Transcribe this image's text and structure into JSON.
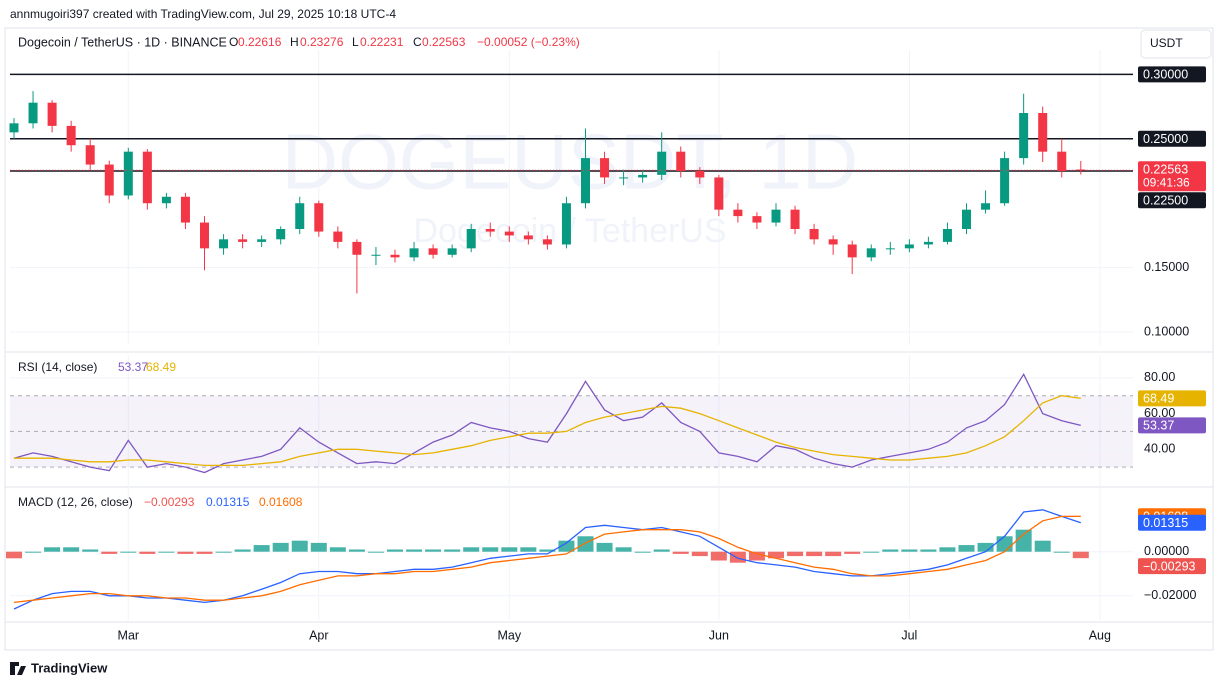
{
  "header": {
    "credit": "annmugoiri397 created with TradingView.com, Jul 29, 2025 10:18 UTC-4",
    "currency": "USDT",
    "brand": "TradingView"
  },
  "chart_data": [
    {
      "type": "candlestick",
      "title": "Dogecoin / TetherUS · 1D · BINANCE",
      "watermark": "DOGEUSDT, 1D",
      "watermark_subtitle": "Dogecoin / TetherUS",
      "open_label": "O",
      "high_label": "H",
      "low_label": "L",
      "close_label": "C",
      "change": "−0.00052 (−0.23%)",
      "countdown": "09:41:36",
      "up_color": "#089981",
      "down_color": "#f23645",
      "grid": true,
      "categories": [
        null,
        null,
        null,
        null,
        null,
        null,
        "Mar",
        null,
        null,
        null,
        null,
        null,
        null,
        null,
        null,
        null,
        "Apr",
        null,
        null,
        null,
        null,
        null,
        null,
        null,
        null,
        null,
        "May",
        null,
        null,
        null,
        null,
        null,
        null,
        null,
        null,
        null,
        null,
        "Jun",
        null,
        null,
        null,
        null,
        null,
        null,
        null,
        null,
        null,
        "Jul",
        null,
        null,
        null,
        null,
        null,
        null,
        null,
        null,
        null,
        "Aug"
      ],
      "open": [
        0.255,
        0.262,
        0.278,
        0.26,
        0.245,
        0.23,
        0.206,
        0.24,
        0.2,
        0.205,
        0.185,
        0.165,
        0.172,
        0.17,
        0.172,
        0.18,
        0.2,
        0.178,
        0.17,
        0.16,
        0.16,
        0.158,
        0.165,
        0.16,
        0.165,
        0.18,
        0.178,
        0.175,
        0.172,
        0.168,
        0.2,
        0.235,
        0.22,
        0.22,
        0.222,
        0.24,
        0.225,
        0.22,
        0.195,
        0.19,
        0.185,
        0.195,
        0.18,
        0.172,
        0.168,
        0.158,
        0.165,
        0.165,
        0.168,
        0.17,
        0.18,
        0.195,
        0.2,
        0.235,
        0.27,
        0.24,
        0.22616,
        null
      ],
      "high": [
        0.266,
        0.287,
        0.28,
        0.264,
        0.25,
        0.233,
        0.243,
        0.242,
        0.208,
        0.208,
        0.19,
        0.176,
        0.176,
        0.175,
        0.182,
        0.205,
        0.202,
        0.182,
        0.172,
        0.166,
        0.164,
        0.17,
        0.168,
        0.168,
        0.184,
        0.185,
        0.182,
        0.178,
        0.175,
        0.205,
        0.258,
        0.24,
        0.226,
        0.226,
        0.255,
        0.244,
        0.228,
        0.222,
        0.2,
        0.193,
        0.2,
        0.198,
        0.184,
        0.175,
        0.171,
        0.168,
        0.17,
        0.172,
        0.174,
        0.185,
        0.2,
        0.21,
        0.24,
        0.285,
        0.275,
        0.25,
        0.23276,
        null
      ],
      "low": [
        0.25,
        0.258,
        0.255,
        0.24,
        0.226,
        0.2,
        0.203,
        0.195,
        0.196,
        0.18,
        0.148,
        0.16,
        0.165,
        0.166,
        0.168,
        0.176,
        0.174,
        0.165,
        0.13,
        0.152,
        0.154,
        0.155,
        0.157,
        0.158,
        0.162,
        0.174,
        0.17,
        0.168,
        0.164,
        0.165,
        0.196,
        0.215,
        0.214,
        0.216,
        0.218,
        0.22,
        0.215,
        0.19,
        0.185,
        0.18,
        0.182,
        0.176,
        0.168,
        0.16,
        0.145,
        0.155,
        0.16,
        0.162,
        0.165,
        0.168,
        0.176,
        0.192,
        0.198,
        0.23,
        0.232,
        0.22,
        0.22231,
        null
      ],
      "close": [
        0.262,
        0.278,
        0.26,
        0.245,
        0.23,
        0.206,
        0.24,
        0.2,
        0.205,
        0.185,
        0.165,
        0.172,
        0.17,
        0.172,
        0.18,
        0.2,
        0.178,
        0.17,
        0.16,
        0.16,
        0.158,
        0.165,
        0.16,
        0.165,
        0.18,
        0.178,
        0.175,
        0.172,
        0.168,
        0.2,
        0.235,
        0.22,
        0.22,
        0.222,
        0.24,
        0.225,
        0.22,
        0.195,
        0.19,
        0.185,
        0.195,
        0.18,
        0.172,
        0.168,
        0.158,
        0.165,
        0.165,
        0.168,
        0.17,
        0.18,
        0.195,
        0.2,
        0.235,
        0.27,
        0.24,
        0.225,
        0.22563,
        null
      ],
      "ylim": [
        0.09,
        0.315
      ],
      "yticks": [
        {
          "value": 0.1,
          "label": "0.10000"
        },
        {
          "value": 0.15,
          "label": "0.15000"
        }
      ],
      "hlines": [
        {
          "value": 0.3,
          "label": "0.30000"
        },
        {
          "value": 0.25,
          "label": "0.25000"
        },
        {
          "value": 0.225,
          "label": "0.22500"
        }
      ]
    },
    {
      "type": "line",
      "title": "RSI (14, close)",
      "ylim": [
        20,
        90
      ],
      "grid": true,
      "yticks": [
        {
          "value": 80,
          "label": "80.00"
        },
        {
          "value": 60,
          "label": "60.00"
        },
        {
          "value": 40,
          "label": "40.00"
        }
      ],
      "bands": [
        30,
        50,
        70
      ],
      "band_color": "#7e57c2",
      "series": [
        {
          "color": "#7e57c2",
          "values": [
            35,
            38,
            36,
            33,
            30,
            28,
            45,
            30,
            32,
            30,
            27,
            32,
            34,
            36,
            40,
            52,
            44,
            38,
            32,
            33,
            32,
            38,
            44,
            48,
            55,
            52,
            50,
            46,
            44,
            60,
            78,
            62,
            56,
            58,
            66,
            55,
            50,
            38,
            36,
            33,
            42,
            40,
            35,
            32,
            30,
            34,
            36,
            38,
            40,
            44,
            52,
            56,
            65,
            82,
            60,
            56,
            53.37,
            null
          ]
        },
        {
          "color": "#e6b400",
          "values": [
            35,
            35,
            35,
            34,
            33,
            33,
            34,
            34,
            33,
            32,
            31,
            31,
            31,
            32,
            33,
            36,
            38,
            40,
            40,
            39,
            38,
            37,
            38,
            40,
            42,
            45,
            47,
            49,
            49,
            50,
            55,
            58,
            60,
            62,
            64,
            63,
            60,
            56,
            52,
            48,
            44,
            41,
            39,
            37,
            36,
            35,
            34,
            34,
            35,
            36,
            38,
            42,
            47,
            56,
            66,
            70,
            68.49,
            null
          ]
        }
      ]
    },
    {
      "type": "line",
      "title": "MACD (12, 26, close)",
      "ylim": [
        -0.031,
        0.028
      ],
      "grid": true,
      "yticks": [
        {
          "value": 0,
          "label": "0.00000"
        },
        {
          "value": -0.02,
          "label": "−0.02000"
        }
      ],
      "series": [
        {
          "type": "bar",
          "up_color": "#26a69a",
          "down_color": "#ef5350",
          "values": [
            -0.003,
            0.0,
            0.002,
            0.002,
            0.001,
            -0.001,
            0.0,
            -0.001,
            0.0,
            -0.001,
            -0.001,
            0.0,
            0.001,
            0.003,
            0.004,
            0.005,
            0.004,
            0.002,
            0.001,
            0.0,
            0.001,
            0.001,
            0.001,
            0.001,
            0.002,
            0.002,
            0.002,
            0.002,
            0.001,
            0.005,
            0.007,
            0.004,
            0.002,
            0.0,
            0.001,
            -0.001,
            -0.002,
            -0.004,
            -0.005,
            -0.004,
            -0.003,
            -0.002,
            -0.002,
            -0.002,
            -0.001,
            0.0,
            0.001,
            0.001,
            0.001,
            0.002,
            0.003,
            0.004,
            0.007,
            0.01,
            0.005,
            0.0,
            -0.00293,
            null
          ],
          "value_labels": [
            null,
            null,
            null,
            null,
            null,
            null,
            null,
            null,
            null,
            null,
            null,
            null,
            null,
            null,
            null,
            null,
            null,
            null,
            null,
            null,
            null,
            null,
            null,
            null,
            null,
            null,
            null,
            null,
            null,
            null,
            null,
            null,
            null,
            null,
            null,
            null,
            null,
            null,
            null,
            null,
            null,
            null,
            null,
            null,
            null,
            null,
            null,
            null,
            null,
            null,
            null,
            null,
            null,
            null,
            null,
            null,
            "−0.00293",
            null
          ]
        },
        {
          "type": "line",
          "color": "#2962ff",
          "values": [
            -0.026,
            -0.022,
            -0.019,
            -0.018,
            -0.018,
            -0.02,
            -0.02,
            -0.021,
            -0.021,
            -0.022,
            -0.023,
            -0.022,
            -0.02,
            -0.017,
            -0.014,
            -0.01,
            -0.009,
            -0.009,
            -0.01,
            -0.01,
            -0.009,
            -0.008,
            -0.008,
            -0.007,
            -0.005,
            -0.003,
            -0.002,
            -0.001,
            -0.001,
            0.004,
            0.011,
            0.012,
            0.011,
            0.01,
            0.011,
            0.009,
            0.007,
            0.002,
            -0.003,
            -0.005,
            -0.006,
            -0.007,
            -0.009,
            -0.01,
            -0.011,
            -0.011,
            -0.01,
            -0.009,
            -0.008,
            -0.006,
            -0.003,
            0.0,
            0.007,
            0.018,
            0.019,
            0.016,
            0.01315,
            null
          ]
        },
        {
          "type": "line",
          "color": "#ff6d00",
          "values": [
            -0.023,
            -0.022,
            -0.021,
            -0.02,
            -0.019,
            -0.019,
            -0.02,
            -0.02,
            -0.021,
            -0.021,
            -0.022,
            -0.022,
            -0.021,
            -0.02,
            -0.018,
            -0.015,
            -0.013,
            -0.011,
            -0.011,
            -0.01,
            -0.01,
            -0.009,
            -0.009,
            -0.008,
            -0.007,
            -0.005,
            -0.004,
            -0.003,
            -0.002,
            -0.001,
            0.004,
            0.008,
            0.009,
            0.01,
            0.01,
            0.01,
            0.009,
            0.006,
            0.002,
            -0.001,
            -0.003,
            -0.005,
            -0.007,
            -0.008,
            -0.01,
            -0.011,
            -0.011,
            -0.01,
            -0.009,
            -0.008,
            -0.006,
            -0.004,
            0.0,
            0.008,
            0.014,
            0.016,
            0.01608,
            null
          ]
        }
      ]
    }
  ]
}
